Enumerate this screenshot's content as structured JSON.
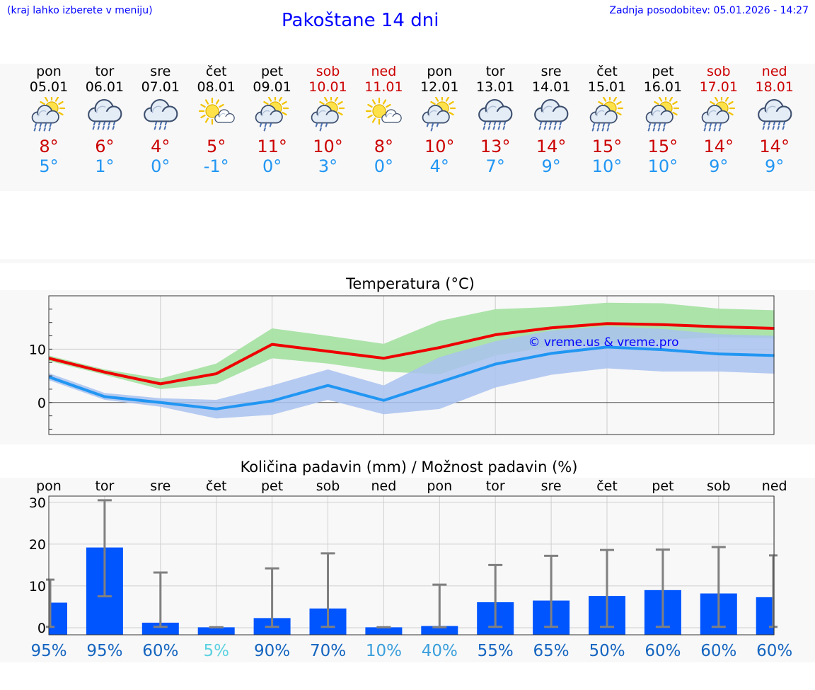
{
  "header": {
    "menu_hint": "(kraj lahko izberete v meniju)",
    "title": "Pakoštane 14 dni",
    "last_update": "Zadnja posodobitev: 05.01.2026 - 14:27"
  },
  "days": [
    {
      "name": "pon",
      "date": "05.01",
      "weekend": false,
      "icon": "sun-cloud-rain-icon",
      "max": "8°",
      "min": "5°"
    },
    {
      "name": "tor",
      "date": "06.01",
      "weekend": false,
      "icon": "cloud-rain-icon",
      "max": "6°",
      "min": "1°"
    },
    {
      "name": "sre",
      "date": "07.01",
      "weekend": false,
      "icon": "cloud-drizzle-icon",
      "max": "4°",
      "min": "0°"
    },
    {
      "name": "čet",
      "date": "08.01",
      "weekend": false,
      "icon": "sun-small-cloud-icon",
      "max": "5°",
      "min": "-1°"
    },
    {
      "name": "pet",
      "date": "09.01",
      "weekend": false,
      "icon": "sun-cloud-drizzle-icon",
      "max": "11°",
      "min": "0°"
    },
    {
      "name": "sob",
      "date": "10.01",
      "weekend": true,
      "icon": "sun-cloud-drizzle-icon",
      "max": "10°",
      "min": "3°"
    },
    {
      "name": "ned",
      "date": "11.01",
      "weekend": true,
      "icon": "sun-small-cloud-icon",
      "max": "8°",
      "min": "0°"
    },
    {
      "name": "pon",
      "date": "12.01",
      "weekend": false,
      "icon": "sun-cloud-drizzle-icon",
      "max": "10°",
      "min": "4°"
    },
    {
      "name": "tor",
      "date": "13.01",
      "weekend": false,
      "icon": "cloud-rain-icon",
      "max": "13°",
      "min": "7°"
    },
    {
      "name": "sre",
      "date": "14.01",
      "weekend": false,
      "icon": "cloud-rain-icon",
      "max": "14°",
      "min": "9°"
    },
    {
      "name": "čet",
      "date": "15.01",
      "weekend": false,
      "icon": "sun-cloud-rain-icon",
      "max": "15°",
      "min": "10°"
    },
    {
      "name": "pet",
      "date": "16.01",
      "weekend": false,
      "icon": "sun-cloud-rain-icon",
      "max": "15°",
      "min": "10°"
    },
    {
      "name": "sob",
      "date": "17.01",
      "weekend": true,
      "icon": "sun-cloud-rain-icon",
      "max": "14°",
      "min": "9°"
    },
    {
      "name": "ned",
      "date": "18.01",
      "weekend": true,
      "icon": "cloud-rain-icon",
      "max": "14°",
      "min": "9°"
    }
  ],
  "colors": {
    "link": "#0000ff",
    "weekend": "#cc0000",
    "max_temp": "#cc0000",
    "min_temp": "#2196f3",
    "max_line": "#ee0000",
    "min_line": "#2196f3",
    "max_band": "#a8e2a4",
    "min_band": "#a9c2f0",
    "bar": "#0055ff",
    "whisker": "#808080"
  },
  "chart_data": [
    {
      "type": "line",
      "title": "Temperatura (°C)",
      "yticks": [
        0,
        10
      ],
      "ylim": [
        -6,
        20
      ],
      "watermark": "© vreme.us & vreme.pro",
      "categories": [
        "pon",
        "tor",
        "sre",
        "čet",
        "pet",
        "sob",
        "ned",
        "pon",
        "tor",
        "sre",
        "čet",
        "pet",
        "sob",
        "ned"
      ],
      "series": [
        {
          "name": "max",
          "values": [
            8.3,
            5.7,
            3.5,
            5.4,
            10.9,
            9.6,
            8.3,
            10.3,
            12.7,
            14.0,
            14.8,
            14.6,
            14.2,
            13.9
          ],
          "band_low": [
            7.8,
            5.2,
            2.5,
            3.5,
            8.3,
            7.3,
            5.8,
            5.3,
            8.8,
            10.5,
            11.0,
            11.8,
            12.2,
            12.0
          ],
          "band_high": [
            8.8,
            6.2,
            4.5,
            7.3,
            13.9,
            12.5,
            11.0,
            15.3,
            17.5,
            17.9,
            18.7,
            18.6,
            17.6,
            17.3
          ]
        },
        {
          "name": "min",
          "values": [
            4.8,
            1.1,
            0.0,
            -1.2,
            0.3,
            3.2,
            0.4,
            3.8,
            7.2,
            9.2,
            10.4,
            9.9,
            9.1,
            8.8
          ],
          "band_low": [
            4.2,
            0.5,
            -0.8,
            -3.0,
            -2.3,
            0.5,
            -2.2,
            -1.2,
            2.8,
            5.2,
            6.4,
            5.8,
            5.8,
            5.4
          ],
          "band_high": [
            5.5,
            1.8,
            0.8,
            0.5,
            3.2,
            6.2,
            3.2,
            8.5,
            11.5,
            13.5,
            14.3,
            13.8,
            12.8,
            12.5
          ]
        }
      ]
    },
    {
      "type": "bar",
      "title": "Količina padavin (mm) / Možnost padavin (%)",
      "categories": [
        "pon",
        "tor",
        "sre",
        "čet",
        "pet",
        "sob",
        "ned",
        "pon",
        "tor",
        "sre",
        "čet",
        "pet",
        "sob",
        "ned"
      ],
      "yticks": [
        0,
        10,
        20,
        30
      ],
      "ylim": [
        -1.7,
        31.5
      ],
      "values": [
        6.0,
        19.2,
        1.2,
        0.1,
        2.3,
        4.6,
        0.1,
        0.4,
        6.1,
        6.5,
        7.6,
        9.0,
        8.2,
        7.3
      ],
      "err_low": [
        0.2,
        7.5,
        0.2,
        0.1,
        0.2,
        0.2,
        0.1,
        0.1,
        0.2,
        0.2,
        0.2,
        0.2,
        0.2,
        0.2
      ],
      "err_high": [
        11.5,
        30.5,
        13.2,
        0.1,
        14.2,
        17.8,
        0.1,
        10.3,
        15.0,
        17.2,
        18.6,
        18.7,
        19.3,
        17.3
      ],
      "chance": [
        "95%",
        "95%",
        "60%",
        "5%",
        "90%",
        "70%",
        "10%",
        "40%",
        "55%",
        "65%",
        "50%",
        "60%",
        "60%",
        "60%"
      ],
      "chance_colors": [
        "#1565c0",
        "#1565c0",
        "#1565c0",
        "#5bd1e0",
        "#1565c0",
        "#1565c0",
        "#3b9fdc",
        "#3b9fdc",
        "#1565c0",
        "#1565c0",
        "#1565c0",
        "#1565c0",
        "#1565c0",
        "#1565c0"
      ]
    }
  ]
}
